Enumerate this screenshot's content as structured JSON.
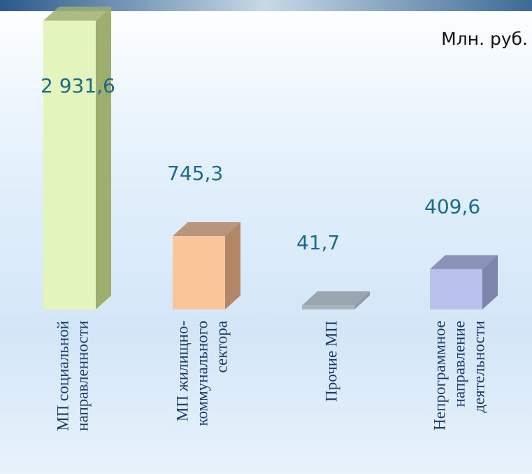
{
  "chart_data": {
    "type": "bar3d",
    "unit_label": "Млн. руб.",
    "categories": [
      "МП социальной\nнаправленности",
      "МП жилищно-\nкоммунального\nсектора",
      "Прочие МП",
      "Непрограммное\nнаправление\nдеятельности"
    ],
    "values": [
      2931.6,
      745.3,
      41.7,
      409.6
    ],
    "value_labels": [
      "2 931,6",
      "745,3",
      "41,7",
      "409,6"
    ],
    "colors": [
      "#e4f4bd",
      "#fbc59a",
      "#a9b5bd",
      "#b9c1ec"
    ],
    "side_colors": [
      "#9eae6e",
      "#b38667",
      "#8f9aa3",
      "#7d85ad"
    ],
    "ylim": [
      0,
      3000
    ]
  }
}
